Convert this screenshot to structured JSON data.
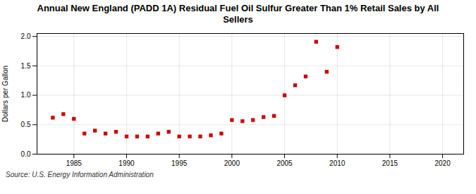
{
  "chart_data": {
    "type": "scatter",
    "title": "Annual New England (PADD 1A) Residual Fuel Oil Sulfur Greater Than 1% Retail Sales by All\nSellers",
    "ylabel": "Dollars per Gallon",
    "source": "Source: U.S. Energy Information Administration",
    "x": [
      1983,
      1984,
      1985,
      1986,
      1987,
      1988,
      1989,
      1990,
      1991,
      1992,
      1993,
      1994,
      1995,
      1996,
      1997,
      1998,
      1999,
      2000,
      2001,
      2002,
      2003,
      2004,
      2005,
      2006,
      2007,
      2008,
      2009,
      2010
    ],
    "values": [
      0.62,
      0.68,
      0.6,
      0.35,
      0.4,
      0.35,
      0.38,
      0.3,
      0.3,
      0.3,
      0.35,
      0.38,
      0.3,
      0.3,
      0.3,
      0.32,
      0.35,
      0.58,
      0.56,
      0.58,
      0.63,
      0.65,
      1.0,
      1.17,
      1.32,
      1.91,
      1.4,
      1.82
    ],
    "color": "#cc0000",
    "marker": "square",
    "xlim": [
      1981.5,
      2022
    ],
    "ylim": [
      0.0,
      2.05
    ],
    "xticks": [
      1985,
      1990,
      1995,
      2000,
      2005,
      2010,
      2015,
      2020
    ],
    "yticks": [
      {
        "value": 0.0,
        "label": "0.0"
      },
      0.5,
      {
        "value": 1.0,
        "label": "1.0"
      },
      1.5,
      {
        "value": 2.0,
        "label": "2.0"
      }
    ],
    "grid": true
  }
}
